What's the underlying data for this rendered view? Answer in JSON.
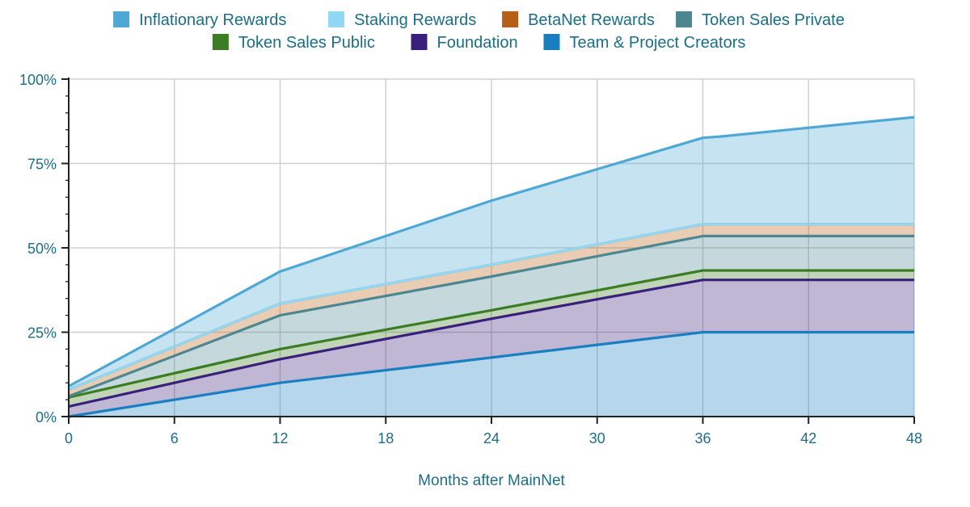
{
  "chart_data": {
    "type": "area",
    "stacked": true,
    "title": "",
    "xlabel": "Months after MainNet",
    "ylabel": "",
    "x": [
      0,
      12,
      24,
      36,
      37,
      48
    ],
    "xticks": [
      "0",
      "6",
      "12",
      "18",
      "24",
      "30",
      "36",
      "42",
      "48"
    ],
    "xlim": [
      0,
      48
    ],
    "yticks": [
      "0%",
      "25%",
      "50%",
      "75%",
      "100%"
    ],
    "ylim": [
      0,
      100
    ],
    "grid": true,
    "legend_position": "top-center",
    "text_color": "#1a6e86",
    "series": [
      {
        "name": "Team & Project Creators",
        "color": "#1a7fc1",
        "cumulative": [
          0,
          10,
          17.5,
          25,
          25,
          25
        ]
      },
      {
        "name": "Foundation",
        "color": "#3a1f7d",
        "cumulative": [
          3,
          17,
          29,
          40.5,
          40.5,
          40.5
        ]
      },
      {
        "name": "Token Sales Public",
        "color": "#3b7d23",
        "cumulative": [
          5.7,
          20,
          31.5,
          43.3,
          43.3,
          43.3
        ]
      },
      {
        "name": "Token Sales Private",
        "color": "#4c8691",
        "cumulative": [
          6,
          30,
          41.5,
          53.5,
          53.5,
          53.5
        ]
      },
      {
        "name": "BetaNet Rewards",
        "color": "#b65f17",
        "cumulative": [
          8,
          33.5,
          45,
          57,
          57,
          57
        ]
      },
      {
        "name": "Staking Rewards",
        "color": "#8fd9f7",
        "cumulative": [
          8,
          33.5,
          45,
          57,
          57,
          57
        ]
      },
      {
        "name": "Inflationary Rewards",
        "color": "#4ea8d6",
        "cumulative": [
          9,
          43,
          64,
          82.6,
          83,
          88.7
        ]
      }
    ],
    "legend_order": [
      [
        "Inflationary Rewards",
        "Staking Rewards",
        "BetaNet Rewards",
        "Token Sales Private"
      ],
      [
        "Token Sales Public",
        "Foundation",
        "Team & Project Creators"
      ]
    ]
  }
}
